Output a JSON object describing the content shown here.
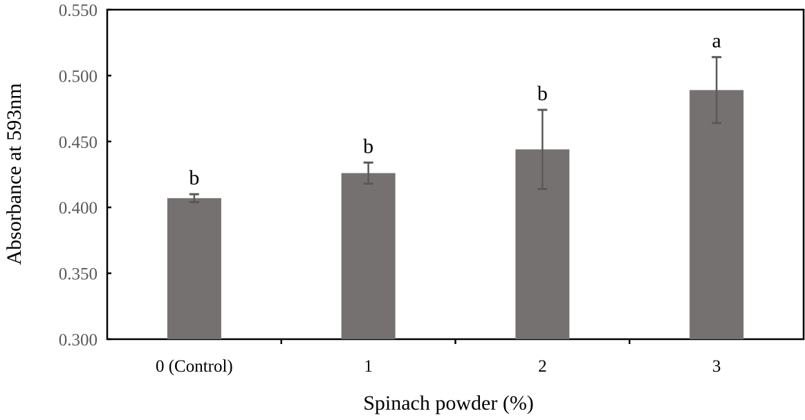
{
  "chart_data": {
    "type": "bar",
    "title": "",
    "xlabel": "Spinach powder (%)",
    "ylabel": "Absorbance at 593nm",
    "categories": [
      "0 (Control)",
      "1",
      "2",
      "3"
    ],
    "values": [
      0.407,
      0.426,
      0.444,
      0.489
    ],
    "error": [
      0.003,
      0.008,
      0.03,
      0.025
    ],
    "significance_letters": [
      "b",
      "b",
      "b",
      "a"
    ],
    "ylim": [
      0.3,
      0.55
    ],
    "yticks": [
      "0.300",
      "0.350",
      "0.400",
      "0.450",
      "0.500",
      "0.550"
    ],
    "grid": false,
    "bar_color": "#767171",
    "error_color": "#595959"
  }
}
